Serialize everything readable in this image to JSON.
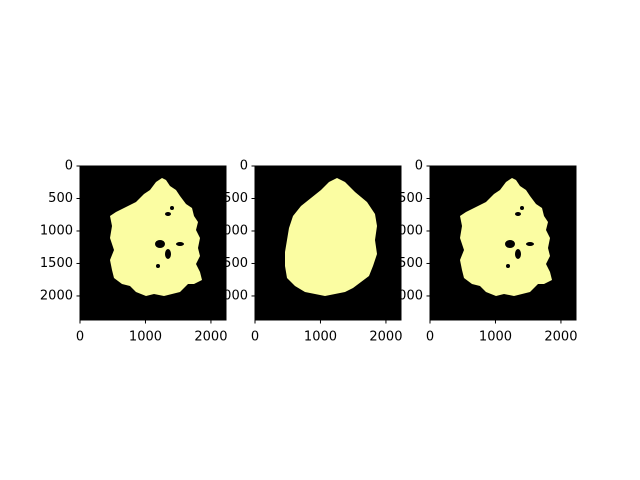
{
  "chart_data": [
    {
      "type": "image",
      "background": "#000000",
      "color": "#fbfda2",
      "shape": "ragged",
      "xlim": [
        0,
        2230
      ],
      "ylim": [
        2370,
        0
      ],
      "xticks": [
        0,
        1000,
        2000
      ],
      "yticks": [
        0,
        500,
        1000,
        1500,
        2000
      ]
    },
    {
      "type": "image",
      "background": "#000000",
      "color": "#fbfda2",
      "shape": "smooth",
      "xlim": [
        0,
        2230
      ],
      "ylim": [
        2370,
        0
      ],
      "xticks": [
        0,
        1000,
        2000
      ],
      "yticks": [
        0,
        500,
        1000,
        1500,
        2000
      ]
    },
    {
      "type": "image",
      "background": "#000000",
      "color": "#fbfda2",
      "shape": "ragged",
      "xlim": [
        0,
        2230
      ],
      "ylim": [
        2370,
        0
      ],
      "xticks": [
        0,
        1000,
        2000
      ],
      "yticks": [
        0,
        500,
        1000,
        1500,
        2000
      ]
    }
  ]
}
